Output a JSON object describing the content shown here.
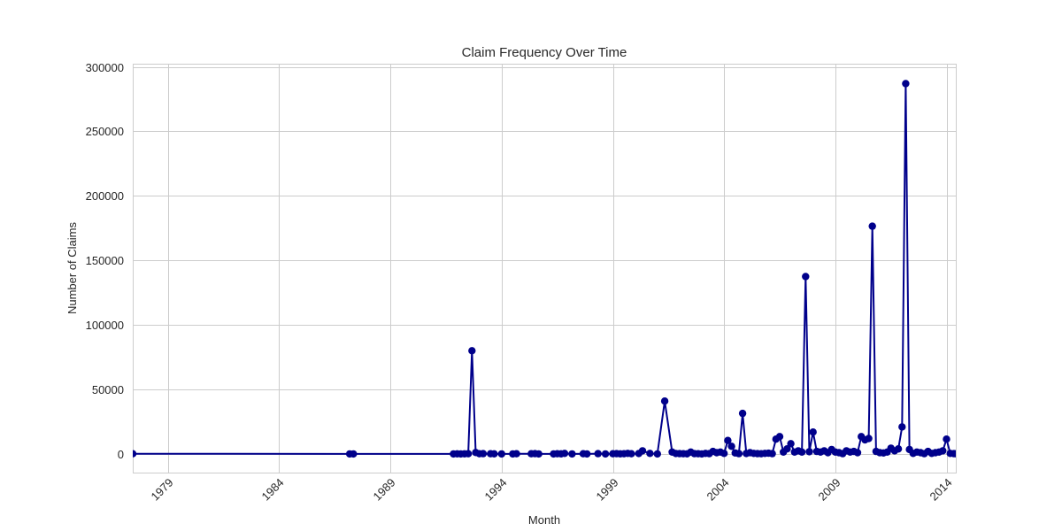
{
  "chart_data": {
    "type": "line",
    "title": "Claim Frequency Over Time",
    "xlabel": "Month",
    "ylabel": "Number of Claims",
    "xlim": [
      "1977-06",
      "2014-06"
    ],
    "ylim": [
      -14400,
      302400
    ],
    "x_ticks": [
      "1979",
      "1984",
      "1989",
      "1994",
      "1999",
      "2004",
      "2009",
      "2014"
    ],
    "y_ticks": [
      "0",
      "50000",
      "100000",
      "150000",
      "200000",
      "250000",
      "300000"
    ],
    "grid": true,
    "legend": "none",
    "line_color": "#00008b",
    "marker": "circle",
    "series": [
      {
        "x": [
          "1977-06",
          "1987-03",
          "1987-05",
          "1991-11",
          "1992-01",
          "1992-03",
          "1992-05",
          "1992-07",
          "1992-09",
          "1992-11",
          "1993-01",
          "1993-03",
          "1993-07",
          "1993-09",
          "1994-01",
          "1994-07",
          "1994-09",
          "1995-05",
          "1995-07",
          "1995-09",
          "1996-05",
          "1996-07",
          "1996-09",
          "1996-11",
          "1997-03",
          "1997-09",
          "1997-11",
          "1998-05",
          "1998-09",
          "1999-01",
          "1999-03",
          "1999-05",
          "1999-07",
          "1999-09",
          "1999-11",
          "2000-03",
          "2000-05",
          "2000-09",
          "2001-01",
          "2001-05",
          "2001-09",
          "2001-11",
          "2002-01",
          "2002-03",
          "2002-05",
          "2002-07",
          "2002-09",
          "2002-11",
          "2003-01",
          "2003-03",
          "2003-05",
          "2003-07",
          "2003-09",
          "2003-11",
          "2004-01",
          "2004-03",
          "2004-05",
          "2004-07",
          "2004-09",
          "2004-11",
          "2005-01",
          "2005-03",
          "2005-05",
          "2005-07",
          "2005-09",
          "2005-11",
          "2006-01",
          "2006-03",
          "2006-05",
          "2006-07",
          "2006-09",
          "2006-11",
          "2007-01",
          "2007-03",
          "2007-05",
          "2007-07",
          "2007-09",
          "2007-11",
          "2008-01",
          "2008-03",
          "2008-05",
          "2008-07",
          "2008-09",
          "2008-11",
          "2009-01",
          "2009-03",
          "2009-05",
          "2009-07",
          "2009-09",
          "2009-11",
          "2010-01",
          "2010-03",
          "2010-05",
          "2010-07",
          "2010-09",
          "2010-11",
          "2011-01",
          "2011-03",
          "2011-05",
          "2011-07",
          "2011-09",
          "2011-11",
          "2012-01",
          "2012-03",
          "2012-05",
          "2012-07",
          "2012-09",
          "2012-11",
          "2013-01",
          "2013-03",
          "2013-05",
          "2013-07",
          "2013-09",
          "2013-11",
          "2014-01",
          "2014-03",
          "2014-05",
          "2014-06"
        ],
        "y": [
          200,
          100,
          100,
          100,
          150,
          100,
          150,
          200,
          80000,
          1200,
          200,
          300,
          200,
          150,
          100,
          100,
          200,
          200,
          300,
          100,
          100,
          200,
          150,
          500,
          100,
          200,
          100,
          300,
          100,
          200,
          300,
          150,
          200,
          500,
          200,
          400,
          2500,
          500,
          100,
          41000,
          1500,
          400,
          300,
          200,
          150,
          1500,
          300,
          200,
          100,
          500,
          300,
          2000,
          1000,
          1500,
          500,
          10500,
          6000,
          800,
          300,
          31500,
          400,
          1000,
          500,
          300,
          200,
          500,
          600,
          300,
          11500,
          13500,
          1500,
          4000,
          8000,
          1500,
          2500,
          1500,
          137500,
          1800,
          17000,
          2000,
          1500,
          2500,
          1000,
          3500,
          1500,
          1000,
          300,
          2500,
          1500,
          2000,
          1000,
          13500,
          11000,
          12000,
          176500,
          2000,
          1000,
          800,
          1500,
          4500,
          2500,
          4000,
          21000,
          287000,
          3500,
          500,
          1500,
          1000,
          300,
          2000,
          500,
          1000,
          1500,
          2500,
          11500,
          500,
          300,
          200
        ]
      }
    ]
  }
}
